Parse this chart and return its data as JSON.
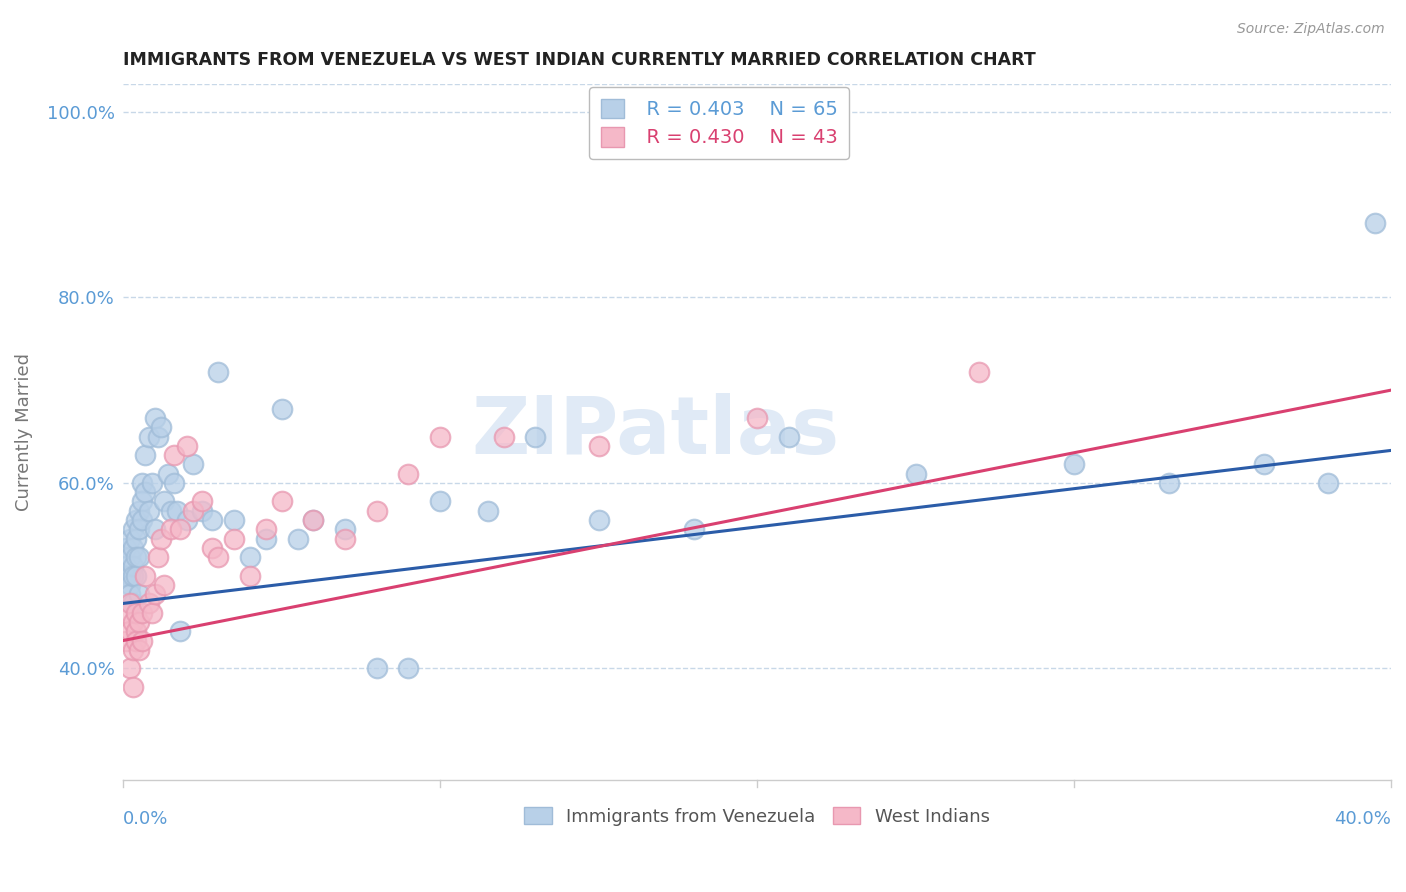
{
  "title": "IMMIGRANTS FROM VENEZUELA VS WEST INDIAN CURRENTLY MARRIED CORRELATION CHART",
  "source": "Source: ZipAtlas.com",
  "ylabel": "Currently Married",
  "xlim": [
    0.0,
    0.4
  ],
  "ylim": [
    0.28,
    1.03
  ],
  "y_ticks": [
    0.4,
    0.6,
    0.8,
    1.0
  ],
  "y_tick_labels": [
    "40.0%",
    "60.0%",
    "80.0%",
    "100.0%"
  ],
  "series1_face_color": "#b8d0e8",
  "series1_edge_color": "#a0bcd8",
  "series1_line_color": "#2b5ca8",
  "series2_face_color": "#f5b8c8",
  "series2_edge_color": "#e898b0",
  "series2_line_color": "#d94070",
  "series1_label": "Immigrants from Venezuela",
  "series2_label": "West Indians",
  "series1_R": "R = 0.403",
  "series1_N": "N = 65",
  "series2_R": "R = 0.430",
  "series2_N": "N = 43",
  "watermark_color": "#ccddf0",
  "title_color": "#222222",
  "axis_tick_color": "#5b9bd5",
  "grid_color": "#c8d8e8",
  "legend_edge_color": "#bbbbbb",
  "venezuela_x": [
    0.001,
    0.001,
    0.001,
    0.002,
    0.002,
    0.002,
    0.002,
    0.002,
    0.003,
    0.003,
    0.003,
    0.003,
    0.003,
    0.004,
    0.004,
    0.004,
    0.004,
    0.005,
    0.005,
    0.005,
    0.005,
    0.006,
    0.006,
    0.006,
    0.007,
    0.007,
    0.008,
    0.008,
    0.009,
    0.01,
    0.01,
    0.011,
    0.012,
    0.013,
    0.014,
    0.015,
    0.016,
    0.017,
    0.018,
    0.02,
    0.022,
    0.025,
    0.028,
    0.03,
    0.035,
    0.04,
    0.045,
    0.05,
    0.055,
    0.06,
    0.07,
    0.08,
    0.09,
    0.1,
    0.115,
    0.13,
    0.15,
    0.18,
    0.21,
    0.25,
    0.3,
    0.33,
    0.36,
    0.38,
    0.395
  ],
  "venezuela_y": [
    0.53,
    0.51,
    0.5,
    0.54,
    0.52,
    0.5,
    0.49,
    0.48,
    0.55,
    0.53,
    0.51,
    0.5,
    0.47,
    0.56,
    0.54,
    0.52,
    0.5,
    0.57,
    0.55,
    0.52,
    0.48,
    0.6,
    0.58,
    0.56,
    0.63,
    0.59,
    0.65,
    0.57,
    0.6,
    0.67,
    0.55,
    0.65,
    0.66,
    0.58,
    0.61,
    0.57,
    0.6,
    0.57,
    0.44,
    0.56,
    0.62,
    0.57,
    0.56,
    0.72,
    0.56,
    0.52,
    0.54,
    0.68,
    0.54,
    0.56,
    0.55,
    0.4,
    0.4,
    0.58,
    0.57,
    0.65,
    0.56,
    0.55,
    0.65,
    0.61,
    0.62,
    0.6,
    0.62,
    0.6,
    0.88
  ],
  "westindian_x": [
    0.001,
    0.001,
    0.002,
    0.002,
    0.002,
    0.003,
    0.003,
    0.003,
    0.004,
    0.004,
    0.004,
    0.005,
    0.005,
    0.006,
    0.006,
    0.007,
    0.008,
    0.009,
    0.01,
    0.011,
    0.012,
    0.013,
    0.015,
    0.016,
    0.018,
    0.02,
    0.022,
    0.025,
    0.028,
    0.03,
    0.035,
    0.04,
    0.045,
    0.05,
    0.06,
    0.07,
    0.08,
    0.09,
    0.1,
    0.12,
    0.15,
    0.2,
    0.27
  ],
  "westindian_y": [
    0.46,
    0.43,
    0.47,
    0.44,
    0.4,
    0.45,
    0.42,
    0.38,
    0.44,
    0.46,
    0.43,
    0.45,
    0.42,
    0.46,
    0.43,
    0.5,
    0.47,
    0.46,
    0.48,
    0.52,
    0.54,
    0.49,
    0.55,
    0.63,
    0.55,
    0.64,
    0.57,
    0.58,
    0.53,
    0.52,
    0.54,
    0.5,
    0.55,
    0.58,
    0.56,
    0.54,
    0.57,
    0.61,
    0.65,
    0.65,
    0.64,
    0.67,
    0.72
  ],
  "ven_line_x0": 0.0,
  "ven_line_y0": 0.47,
  "ven_line_x1": 0.4,
  "ven_line_y1": 0.635,
  "wi_line_x0": 0.0,
  "wi_line_y0": 0.43,
  "wi_line_x1": 0.4,
  "wi_line_y1": 0.7
}
